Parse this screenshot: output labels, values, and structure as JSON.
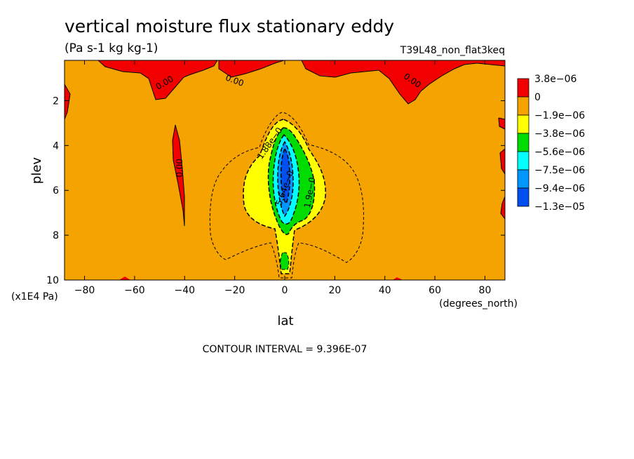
{
  "chart_data": {
    "type": "contour",
    "title": "vertical moisture flux stationary eddy",
    "units": "(Pa s-1 kg kg-1)",
    "experiment": "T39L48_non_flat3keq",
    "xlabel": "lat",
    "xunits": "(degrees_north)",
    "ylabel": "plev",
    "yunits": "(x1E4 Pa)",
    "xlim": [
      -88,
      88
    ],
    "ylim": [
      10,
      0.2
    ],
    "xticks": [
      -80,
      -60,
      -40,
      -20,
      0,
      20,
      40,
      60,
      80
    ],
    "xtick_labels": [
      "−80",
      "−60",
      "−40",
      "−20",
      "0",
      "20",
      "40",
      "60",
      "80"
    ],
    "yticks": [
      2,
      4,
      6,
      8,
      10
    ],
    "ytick_labels": [
      "2",
      "4",
      "6",
      "8",
      "10"
    ],
    "contour_interval_text": "CONTOUR INTERVAL = 9.396E-07",
    "colorbar": {
      "labels": [
        "3.8e−06",
        "0",
        "−1.9e−06",
        "−3.8e−06",
        "−5.6e−06",
        "−7.5e−06",
        "−9.4e−06",
        "−1.3e−05"
      ],
      "colors": [
        "#f20000",
        "#f5a300",
        "#ffff00",
        "#00dc00",
        "#00ffff",
        "#0096ff",
        "#0050f0"
      ]
    },
    "contour_labels": [
      {
        "text": "0.00",
        "lat": -48,
        "plev": 1.2,
        "angle": -30
      },
      {
        "text": "0.00",
        "lat": -20,
        "plev": 1.1,
        "angle": 20
      },
      {
        "text": "0.00",
        "lat": 51,
        "plev": 1.1,
        "angle": 35
      },
      {
        "text": "0.00",
        "lat": -42,
        "plev": 5.0,
        "angle": -90
      },
      {
        "text": "1.88e−0",
        "lat": -6,
        "plev": 3.9,
        "angle": -55
      },
      {
        "text": "5.64e−0",
        "lat": 0,
        "plev": 5.9,
        "angle": -70
      },
      {
        "text": "1.9e−0",
        "lat": 10,
        "plev": 6.1,
        "angle": -80
      }
    ]
  }
}
